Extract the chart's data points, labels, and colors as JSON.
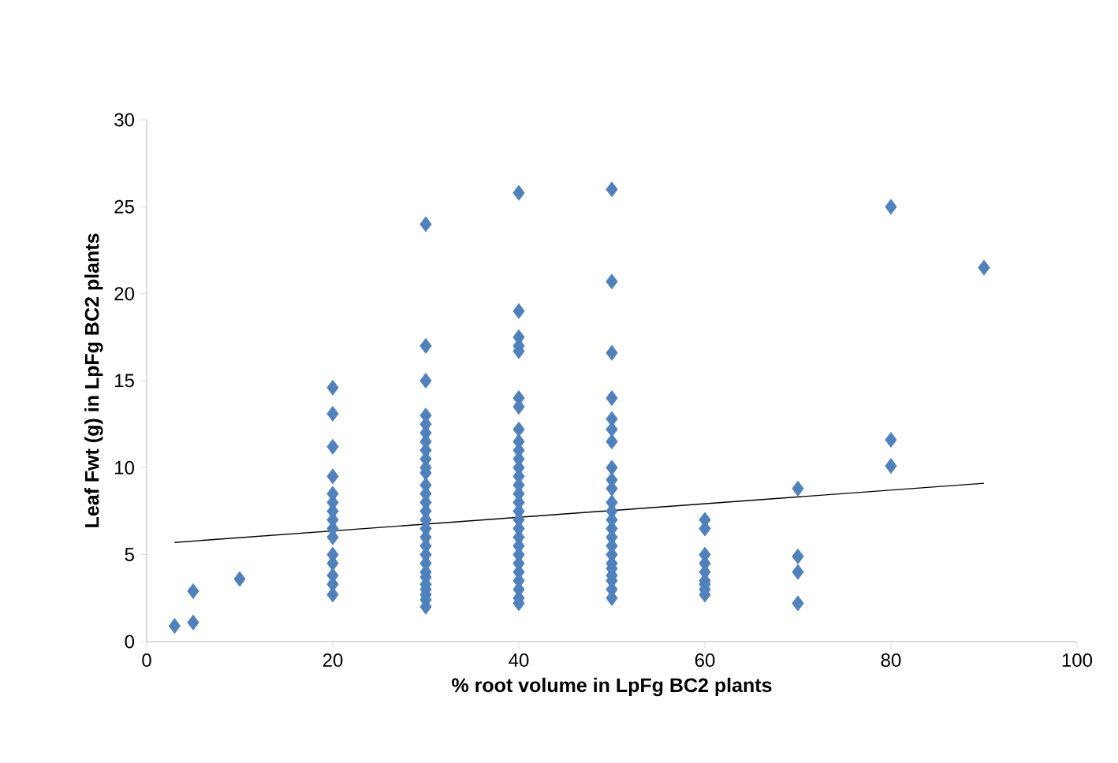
{
  "chart_data": {
    "type": "scatter",
    "xlabel": "% root volume in LpFg BC2 plants",
    "ylabel": "Leaf Fwt (g) in LpFg BC2 plants",
    "xlim": [
      0,
      100
    ],
    "ylim": [
      0,
      30
    ],
    "xticks": [
      0,
      20,
      40,
      60,
      80,
      100
    ],
    "yticks": [
      0,
      5,
      10,
      15,
      20,
      25,
      30
    ],
    "series": [
      {
        "marker": "diamond",
        "color": "#4f81bd",
        "x": [
          3,
          5,
          5,
          10,
          20,
          20,
          20,
          20,
          20,
          20,
          20,
          20,
          20,
          20,
          20,
          20,
          20,
          20,
          20,
          30,
          30,
          30,
          30,
          30,
          30,
          30,
          30,
          30,
          30,
          30,
          30,
          30,
          30,
          30,
          30,
          30,
          30,
          30,
          30,
          30,
          30,
          30,
          30,
          30,
          30,
          30,
          30,
          40,
          40,
          40,
          40,
          40,
          40,
          40,
          40,
          40,
          40,
          40,
          40,
          40,
          40,
          40,
          40,
          40,
          40,
          40,
          40,
          40,
          40,
          40,
          40,
          40,
          40,
          40,
          40,
          50,
          50,
          50,
          50,
          50,
          50,
          50,
          50,
          50,
          50,
          50,
          50,
          50,
          50,
          50,
          50,
          50,
          50,
          50,
          50,
          50,
          50,
          50,
          60,
          60,
          60,
          60,
          60,
          60,
          60,
          60,
          60,
          70,
          70,
          70,
          70,
          80,
          80,
          80,
          90
        ],
        "values": [
          0.9,
          2.9,
          1.1,
          3.6,
          14.6,
          13.1,
          11.2,
          9.5,
          8.5,
          8.0,
          7.5,
          7.0,
          6.5,
          6.0,
          5.0,
          4.5,
          3.8,
          3.3,
          2.7,
          24.0,
          17.0,
          15.0,
          13.0,
          12.5,
          12.0,
          11.5,
          11.0,
          10.5,
          10.0,
          9.7,
          9.0,
          8.5,
          8.0,
          7.5,
          7.0,
          6.5,
          6.0,
          5.5,
          5.0,
          4.5,
          4.0,
          3.7,
          3.3,
          3.0,
          2.7,
          2.4,
          2.0,
          25.8,
          19.0,
          17.5,
          17.0,
          16.7,
          14.0,
          13.5,
          12.2,
          11.5,
          11.0,
          10.5,
          10.0,
          9.5,
          9.0,
          8.5,
          8.0,
          7.5,
          7.0,
          6.5,
          6.0,
          5.5,
          5.0,
          4.5,
          4.0,
          3.5,
          3.0,
          2.5,
          2.2,
          26.0,
          20.7,
          16.6,
          14.0,
          12.8,
          12.2,
          11.5,
          10.0,
          9.3,
          8.8,
          8.0,
          7.5,
          7.0,
          6.5,
          6.0,
          5.5,
          5.0,
          4.5,
          4.2,
          3.8,
          3.5,
          3.0,
          2.5,
          7.0,
          6.5,
          5.0,
          4.5,
          4.0,
          3.5,
          3.3,
          3.0,
          2.7,
          8.8,
          4.9,
          4.0,
          2.2,
          25.0,
          11.6,
          10.1,
          21.5
        ]
      },
      {
        "type": "line",
        "marker": "none",
        "color": "#000000",
        "x": [
          3,
          90
        ],
        "values": [
          5.7,
          9.1
        ]
      }
    ]
  }
}
